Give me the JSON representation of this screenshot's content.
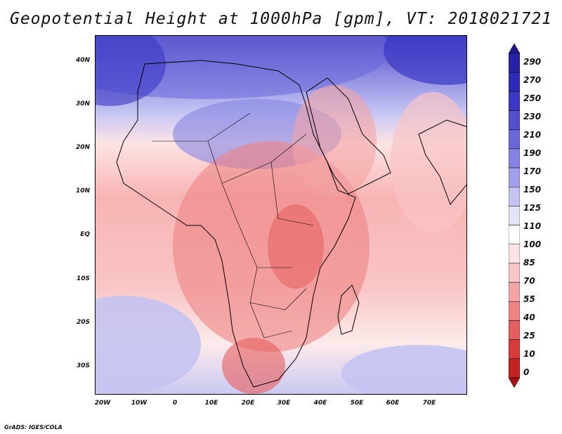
{
  "title": "Geopotential Height at 1000hPa [gpm], VT: 2018021721",
  "footer": "GrADS: IGES/COLA",
  "y_axis": {
    "ticks": [
      {
        "label": "40N",
        "lat": 40
      },
      {
        "label": "30N",
        "lat": 30
      },
      {
        "label": "20N",
        "lat": 20
      },
      {
        "label": "10N",
        "lat": 10
      },
      {
        "label": "EQ",
        "lat": 0
      },
      {
        "label": "10S",
        "lat": -10
      },
      {
        "label": "20S",
        "lat": -20
      },
      {
        "label": "30S",
        "lat": -30
      }
    ],
    "range": [
      -36.5,
      45
    ]
  },
  "x_axis": {
    "ticks": [
      {
        "label": "20W",
        "lon": -20
      },
      {
        "label": "10W",
        "lon": -10
      },
      {
        "label": "0",
        "lon": 0
      },
      {
        "label": "10E",
        "lon": 10
      },
      {
        "label": "20E",
        "lon": 20
      },
      {
        "label": "30E",
        "lon": 30
      },
      {
        "label": "40E",
        "lon": 40
      },
      {
        "label": "50E",
        "lon": 50
      },
      {
        "label": "60E",
        "lon": 60
      },
      {
        "label": "70E",
        "lon": 70
      }
    ],
    "range": [
      -22.5,
      80
    ]
  },
  "colorbar": {
    "levels": [
      {
        "label": "290",
        "value": 290
      },
      {
        "label": "270",
        "value": 270
      },
      {
        "label": "250",
        "value": 250
      },
      {
        "label": "230",
        "value": 230
      },
      {
        "label": "210",
        "value": 210
      },
      {
        "label": "190",
        "value": 190
      },
      {
        "label": "170",
        "value": 170
      },
      {
        "label": "150",
        "value": 150
      },
      {
        "label": "125",
        "value": 125
      },
      {
        "label": "110",
        "value": 110
      },
      {
        "label": "100",
        "value": 100
      },
      {
        "label": "85",
        "value": 85
      },
      {
        "label": "70",
        "value": 70
      },
      {
        "label": "55",
        "value": 55
      },
      {
        "label": "40",
        "value": 40
      },
      {
        "label": "25",
        "value": 25
      },
      {
        "label": "10",
        "value": 10
      },
      {
        "label": "0",
        "value": 0
      }
    ],
    "colors": [
      "#1e1a8c",
      "#2622a6",
      "#2d2ab8",
      "#3b38c4",
      "#5250ce",
      "#6a68d8",
      "#8583e2",
      "#a2a0ea",
      "#c4c3f2",
      "#e4e4f8",
      "#ffffff",
      "#fde4e4",
      "#f9c5c5",
      "#f4a4a4",
      "#ee8484",
      "#e65e5e",
      "#d83a3a",
      "#c52222",
      "#aa1414"
    ]
  }
}
